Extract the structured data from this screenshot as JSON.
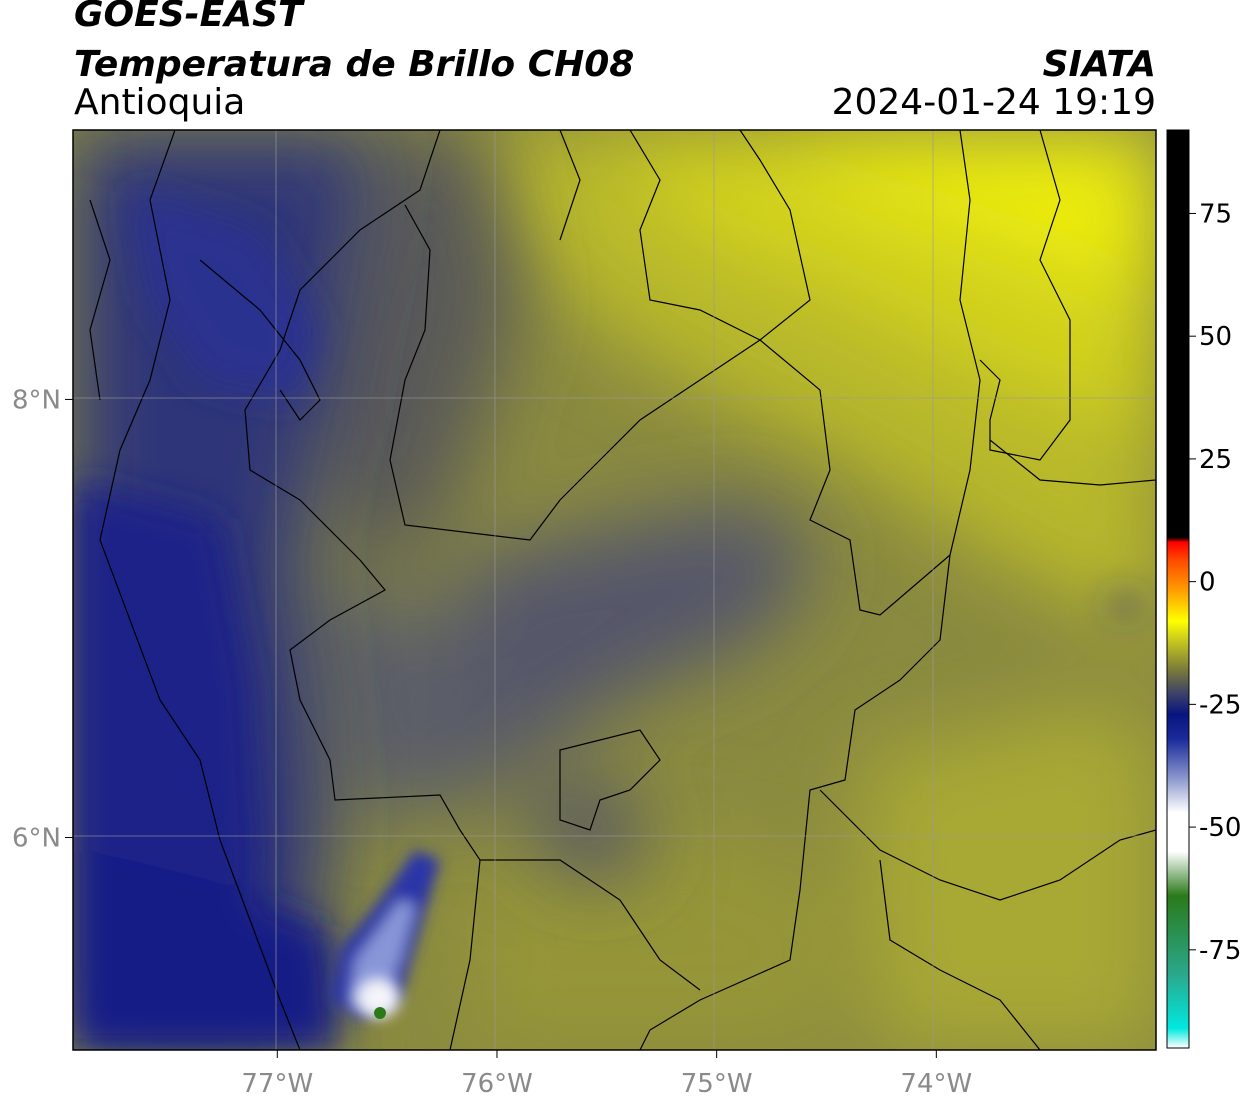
{
  "header": {
    "satellite": "GOES-EAST",
    "product": "Temperatura de Brillo CH08",
    "region": "Antioquia",
    "organization": "SIATA",
    "datetime": "2024-01-24 19:19"
  },
  "map": {
    "lon_range": [
      -77.93,
      -73.0
    ],
    "lat_range": [
      5.03,
      9.23
    ],
    "lon_ticks": [
      {
        "value": -77,
        "label": "77°W"
      },
      {
        "value": -76,
        "label": "76°W"
      },
      {
        "value": -75,
        "label": "75°W"
      },
      {
        "value": -74,
        "label": "74°W"
      }
    ],
    "lat_ticks": [
      {
        "value": 8,
        "label": "8°N"
      },
      {
        "value": 6,
        "label": "6°N"
      }
    ],
    "gridlines": true,
    "features": "brightness temperature field with political boundaries; cold deep-blue region to the west, warm yellow to the northeast, small very cold white cell near 5.3°N 76.5°W"
  },
  "colorbar": {
    "range": [
      -95,
      92
    ],
    "ticks": [
      {
        "value": 75,
        "label": "75"
      },
      {
        "value": 50,
        "label": "50"
      },
      {
        "value": 25,
        "label": "25"
      },
      {
        "value": 0,
        "label": "0"
      },
      {
        "value": -25,
        "label": "-25"
      },
      {
        "value": -50,
        "label": "-50"
      },
      {
        "value": -75,
        "label": "-75"
      }
    ],
    "stops": [
      {
        "value": -95,
        "color": "#ffffff"
      },
      {
        "value": -91,
        "color": "#00e8e0"
      },
      {
        "value": -80,
        "color": "#2aa88c"
      },
      {
        "value": -64,
        "color": "#2a7a1a"
      },
      {
        "value": -55,
        "color": "#ffffff"
      },
      {
        "value": -47,
        "color": "#ffffff"
      },
      {
        "value": -40,
        "color": "#8a96cc"
      },
      {
        "value": -32,
        "color": "#1a2a9a"
      },
      {
        "value": -27,
        "color": "#08157f"
      },
      {
        "value": -23,
        "color": "#3a3f6a"
      },
      {
        "value": -18,
        "color": "#7a7a3a"
      },
      {
        "value": -12,
        "color": "#c8c820"
      },
      {
        "value": -8,
        "color": "#ffff00"
      },
      {
        "value": -2,
        "color": "#ffa000"
      },
      {
        "value": 4,
        "color": "#ff5000"
      },
      {
        "value": 8,
        "color": "#ff0000"
      },
      {
        "value": 9,
        "color": "#000000"
      },
      {
        "value": 92,
        "color": "#000000"
      }
    ]
  }
}
